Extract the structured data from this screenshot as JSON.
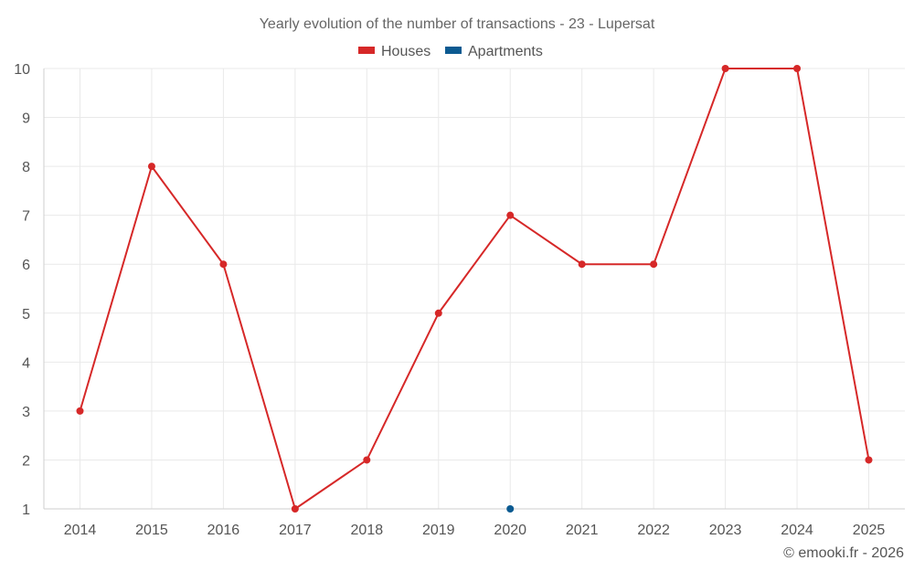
{
  "chart_data": {
    "type": "line",
    "title": "Yearly evolution of the number of transactions - 23 - Lupersat",
    "categories": [
      "2014",
      "2015",
      "2016",
      "2017",
      "2018",
      "2019",
      "2020",
      "2021",
      "2022",
      "2023",
      "2024",
      "2025"
    ],
    "ylim": [
      1,
      10
    ],
    "yticks": [
      "1",
      "2",
      "3",
      "4",
      "5",
      "6",
      "7",
      "8",
      "9",
      "10"
    ],
    "grid": true,
    "legend_position": "top-center",
    "xlabel": "",
    "ylabel": "",
    "series": [
      {
        "name": "Houses",
        "color": "#d62828",
        "values": [
          3,
          8,
          6,
          1,
          2,
          5,
          7,
          6,
          6,
          10,
          10,
          2
        ]
      },
      {
        "name": "Apartments",
        "color": "#0b5a91",
        "values": [
          null,
          null,
          null,
          null,
          null,
          null,
          1,
          null,
          null,
          null,
          null,
          null
        ]
      }
    ]
  },
  "credit": "© emooki.fr - 2026"
}
